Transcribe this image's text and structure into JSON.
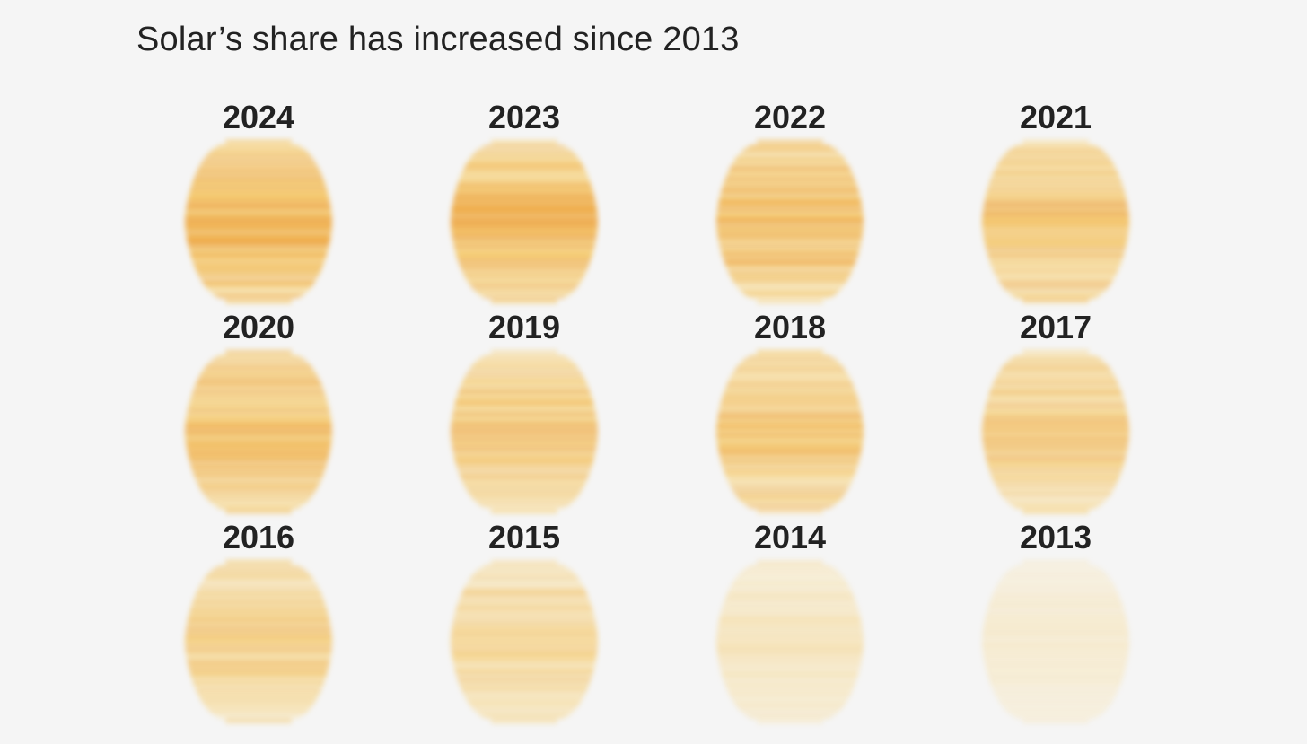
{
  "chart_data": {
    "type": "heatmap",
    "title": "Solar’s share has increased since 2013",
    "categories": [
      "2024",
      "2023",
      "2022",
      "2021",
      "2020",
      "2019",
      "2018",
      "2017",
      "2016",
      "2015",
      "2014",
      "2013"
    ],
    "values": [
      1.0,
      0.96,
      0.88,
      0.8,
      0.85,
      0.74,
      0.76,
      0.7,
      0.64,
      0.56,
      0.32,
      0.18
    ],
    "colors": {
      "light": "#fbe3a3",
      "mid": "#f5bb3c",
      "dark": "#ec9519",
      "background": "#f5f5f5"
    }
  }
}
